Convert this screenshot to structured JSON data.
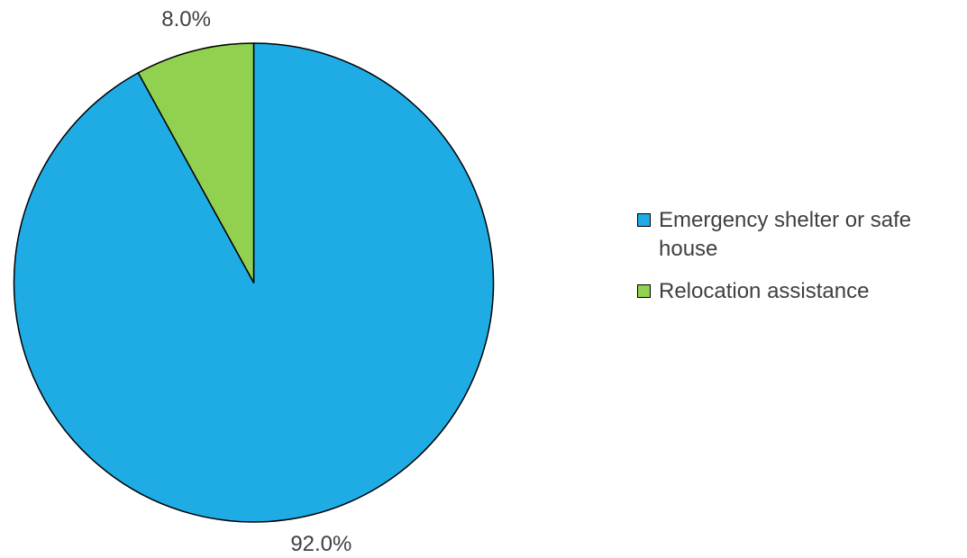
{
  "chart_data": {
    "type": "pie",
    "title": "",
    "categories": [
      "Emergency shelter or safe house",
      "Relocation assistance"
    ],
    "values": [
      92.0,
      8.0
    ],
    "data_labels": [
      "92.0%",
      "8.0%"
    ],
    "colors": [
      "#1FACE4",
      "#92D050"
    ],
    "start_angle_deg": 0,
    "direction": "clockwise",
    "legend_position": "right",
    "legend": {
      "items": [
        {
          "label": "Emergency shelter or safe house",
          "color": "#1FACE4"
        },
        {
          "label": "Relocation assistance",
          "color": "#92D050"
        }
      ]
    }
  }
}
